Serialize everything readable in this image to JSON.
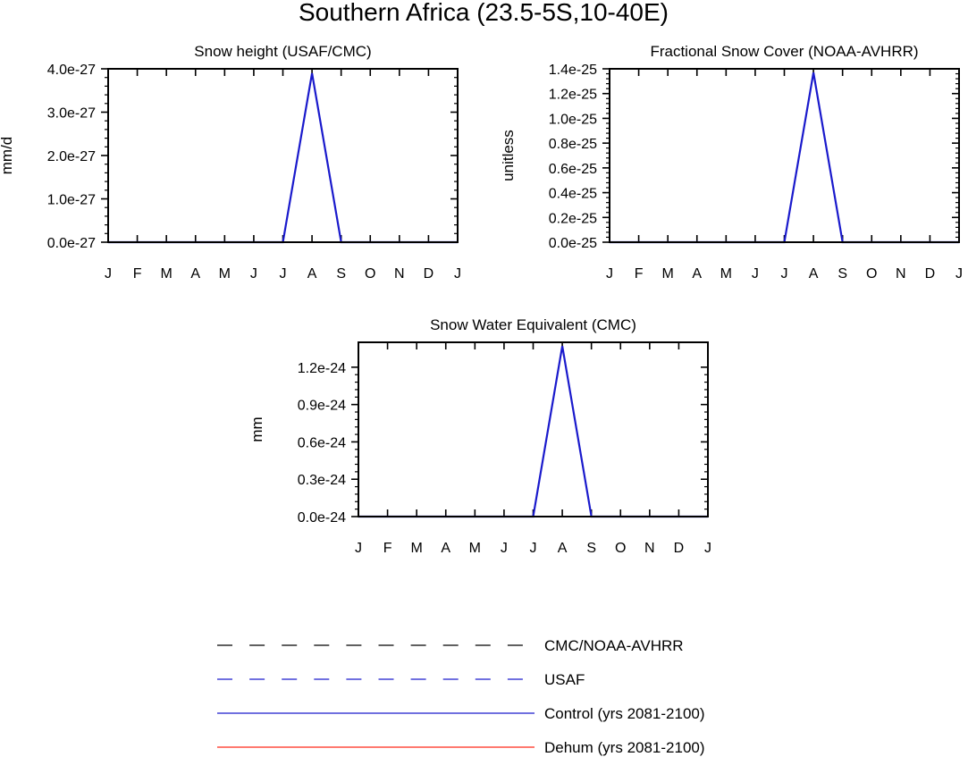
{
  "figure": {
    "title": "Southern Africa (23.5-5S,10-40E)"
  },
  "colors": {
    "control": "#1a1acc",
    "dehum": "#ff2a1a",
    "obs_black": "#000000",
    "obs_blue": "#1a1acc"
  },
  "legend": {
    "items": [
      {
        "label": "CMC/NOAA-AVHRR",
        "style": "dashed",
        "color": "#000000"
      },
      {
        "label": "USAF",
        "style": "dashed",
        "color": "#1a1acc"
      },
      {
        "label": "Control (yrs 2081-2100)",
        "style": "solid",
        "color": "#1a1acc"
      },
      {
        "label": "Dehum (yrs 2081-2100)",
        "style": "solid",
        "color": "#ff2a1a"
      }
    ]
  },
  "chart_data": [
    {
      "type": "line",
      "title": "Snow height (USAF/CMC)",
      "xlabel": "",
      "ylabel": "mm/d",
      "x": [
        "J",
        "F",
        "M",
        "A",
        "M",
        "J",
        "J",
        "A",
        "S",
        "O",
        "N",
        "D",
        "J"
      ],
      "ylim": [
        0,
        4e-27
      ],
      "yticks": [
        0,
        1e-27,
        2e-27,
        3e-27,
        4e-27
      ],
      "ytick_labels": [
        "0.0e-27",
        "1.0e-27",
        "2.0e-27",
        "3.0e-27",
        "4.0e-27"
      ],
      "series": [
        {
          "name": "Control (yrs 2081-2100)",
          "color": "#1a1acc",
          "values": [
            0,
            0,
            0,
            0,
            0,
            0,
            0,
            3.9e-27,
            0,
            0,
            0,
            0,
            0
          ]
        }
      ]
    },
    {
      "type": "line",
      "title": "Fractional Snow Cover (NOAA-AVHRR)",
      "xlabel": "",
      "ylabel": "unitless",
      "x": [
        "J",
        "F",
        "M",
        "A",
        "M",
        "J",
        "J",
        "A",
        "S",
        "O",
        "N",
        "D",
        "J"
      ],
      "ylim": [
        0,
        1.4e-25
      ],
      "yticks": [
        0,
        2e-26,
        4e-26,
        6e-26,
        8e-26,
        1e-25,
        1.2e-25,
        1.4e-25
      ],
      "ytick_labels": [
        "0.0e-25",
        "0.2e-25",
        "0.4e-25",
        "0.6e-25",
        "0.8e-25",
        "1.0e-25",
        "1.2e-25",
        "1.4e-25"
      ],
      "series": [
        {
          "name": "Control (yrs 2081-2100)",
          "color": "#1a1acc",
          "values": [
            0,
            0,
            0,
            0,
            0,
            0,
            0,
            1.37e-25,
            0,
            0,
            0,
            0,
            0
          ]
        }
      ]
    },
    {
      "type": "line",
      "title": "Snow Water Equivalent (CMC)",
      "xlabel": "",
      "ylabel": "mm",
      "x": [
        "J",
        "F",
        "M",
        "A",
        "M",
        "J",
        "J",
        "A",
        "S",
        "O",
        "N",
        "D",
        "J"
      ],
      "ylim": [
        0,
        1.4e-24
      ],
      "yticks": [
        0,
        3e-25,
        6e-25,
        9e-25,
        1.2e-24
      ],
      "ytick_labels": [
        "0.0e-24",
        "0.3e-24",
        "0.6e-24",
        "0.9e-24",
        "1.2e-24"
      ],
      "series": [
        {
          "name": "Control (yrs 2081-2100)",
          "color": "#1a1acc",
          "values": [
            0,
            0,
            0,
            0,
            0,
            0,
            0,
            1.37e-24,
            0,
            0,
            0,
            0,
            0
          ]
        }
      ]
    }
  ]
}
